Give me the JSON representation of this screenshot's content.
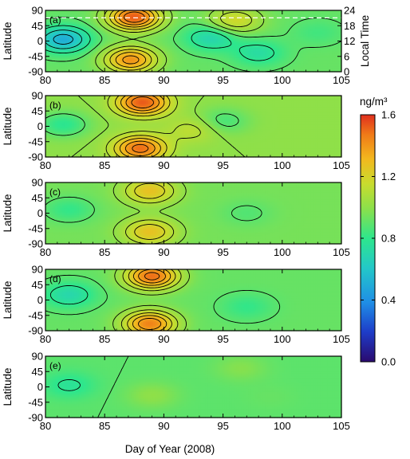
{
  "chart_data": {
    "type": "heatmap",
    "x_axis": {
      "label": "Day of Year (2008)",
      "range": [
        80,
        105
      ],
      "ticks": [
        80,
        85,
        90,
        95,
        100,
        105
      ]
    },
    "y_axis": {
      "label": "Latitude",
      "range": [
        -90,
        90
      ],
      "ticks": [
        90,
        45,
        0,
        -45,
        -90
      ]
    },
    "secondary_y_axis": {
      "label": "Local Time",
      "panel": "(a)",
      "range": [
        0,
        24
      ],
      "ticks": [
        24,
        18,
        12,
        6,
        0
      ]
    },
    "colorbar": {
      "unit": "ng/m³",
      "range": [
        0.0,
        1.6
      ],
      "ticks": [
        "1.6",
        "1.2",
        "0.8",
        "0.4",
        "0.0"
      ],
      "colormap": [
        "#2a0a6e",
        "#1e3cc8",
        "#1f8ee6",
        "#23c8c8",
        "#2ee68c",
        "#8be04b",
        "#c8dc2e",
        "#f2b81e",
        "#f07a18",
        "#e0301e"
      ]
    },
    "contours": {
      "color": "#000000",
      "lines_drawn": true
    },
    "dashed_line": {
      "panel": "(a)",
      "color": "#ffffff",
      "latitude_approx": 68
    },
    "panels": [
      {
        "label": "(a)",
        "background_density": 0.82,
        "features": [
          {
            "day": 87.5,
            "lat": 70,
            "density": 1.5
          },
          {
            "day": 87.2,
            "lat": -55,
            "density": 1.35
          },
          {
            "day": 81.5,
            "lat": 5,
            "density": 0.45
          },
          {
            "day": 94.0,
            "lat": 10,
            "density": 0.6
          },
          {
            "day": 96.0,
            "lat": 60,
            "density": 1.1
          },
          {
            "day": 98.0,
            "lat": -35,
            "density": 0.65
          },
          {
            "day": 103.0,
            "lat": 25,
            "density": 0.75
          }
        ]
      },
      {
        "label": "(b)",
        "background_density": 0.9,
        "features": [
          {
            "day": 88.2,
            "lat": 70,
            "density": 1.5
          },
          {
            "day": 88.0,
            "lat": -65,
            "density": 1.45
          },
          {
            "day": 81.5,
            "lat": 5,
            "density": 0.7
          },
          {
            "day": 95.0,
            "lat": 15,
            "density": 0.75
          },
          {
            "day": 92.5,
            "lat": -10,
            "density": 1.05
          }
        ]
      },
      {
        "label": "(c)",
        "background_density": 0.85,
        "features": [
          {
            "day": 88.8,
            "lat": 65,
            "density": 1.2
          },
          {
            "day": 88.8,
            "lat": -55,
            "density": 1.2
          },
          {
            "day": 82.0,
            "lat": 10,
            "density": 0.72
          },
          {
            "day": 97.0,
            "lat": 0,
            "density": 0.78
          }
        ]
      },
      {
        "label": "(d)",
        "background_density": 0.82,
        "features": [
          {
            "day": 89.0,
            "lat": 70,
            "density": 1.45
          },
          {
            "day": 88.8,
            "lat": -70,
            "density": 1.4
          },
          {
            "day": 82.0,
            "lat": 15,
            "density": 0.62
          },
          {
            "day": 97.0,
            "lat": -20,
            "density": 0.72
          }
        ]
      },
      {
        "label": "(e)",
        "background_density": 0.8,
        "features": [
          {
            "day": 82.0,
            "lat": 5,
            "density": 0.68
          },
          {
            "day": 89.0,
            "lat": -25,
            "density": 0.9
          },
          {
            "day": 96.5,
            "lat": 55,
            "density": 0.88
          },
          {
            "day": 99.0,
            "lat": -30,
            "density": 0.82
          }
        ]
      }
    ]
  }
}
